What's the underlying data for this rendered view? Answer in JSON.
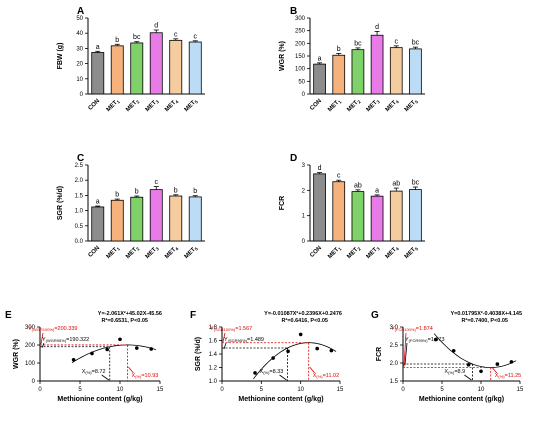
{
  "chart_data": [
    {
      "panel": "A",
      "type": "bar",
      "ylabel": "FBW (g)",
      "categories": [
        "CON",
        "MET1",
        "MET2",
        "MET3",
        "MET4",
        "MET5"
      ],
      "values": [
        27.3,
        31.7,
        33.6,
        40.3,
        35.3,
        34.2
      ],
      "errors": [
        0.8,
        1.0,
        0.8,
        1.8,
        1.0,
        0.8
      ],
      "letters": [
        "a",
        "b",
        "bc",
        "d",
        "c",
        "c"
      ],
      "yticks": [
        0,
        10,
        20,
        30,
        40,
        50
      ],
      "ylim": [
        0,
        50
      ]
    },
    {
      "panel": "B",
      "type": "bar",
      "ylabel": "WGR (%)",
      "categories": [
        "CON",
        "MET1",
        "MET2",
        "MET3",
        "MET4",
        "MET5"
      ],
      "values": [
        118,
        153,
        175,
        232,
        183,
        178
      ],
      "errors": [
        5,
        7,
        7,
        15,
        7,
        7
      ],
      "letters": [
        "a",
        "b",
        "bc",
        "d",
        "c",
        "bc"
      ],
      "yticks": [
        0,
        50,
        100,
        150,
        200,
        250,
        300
      ],
      "ylim": [
        0,
        300
      ]
    },
    {
      "panel": "C",
      "type": "bar",
      "ylabel": "SGR (%/d)",
      "categories": [
        "CON",
        "MET1",
        "MET2",
        "MET3",
        "MET4",
        "MET5"
      ],
      "values": [
        1.12,
        1.34,
        1.44,
        1.69,
        1.48,
        1.45
      ],
      "errors": [
        0.03,
        0.04,
        0.04,
        0.1,
        0.04,
        0.04
      ],
      "letters": [
        "a",
        "b",
        "b",
        "c",
        "b",
        "b"
      ],
      "yticks": [
        0.0,
        0.5,
        1.0,
        1.5,
        2.0,
        2.5
      ],
      "ylim": [
        0,
        2.5
      ]
    },
    {
      "panel": "D",
      "type": "bar",
      "ylabel": "FCR",
      "categories": [
        "CON",
        "MET1",
        "MET2",
        "MET3",
        "MET4",
        "MET5"
      ],
      "values": [
        2.65,
        2.34,
        1.95,
        1.77,
        1.97,
        2.03
      ],
      "errors": [
        0.05,
        0.06,
        0.07,
        0.05,
        0.12,
        0.1
      ],
      "letters": [
        "d",
        "c",
        "ab",
        "a",
        "ab",
        "bc"
      ],
      "yticks": [
        0,
        1,
        2,
        3
      ],
      "ylim": [
        0,
        3
      ]
    },
    {
      "panel": "E",
      "type": "scatter",
      "ylabel": "WGR (%)",
      "xlabel": "Methionine content (g/kg)",
      "x": [
        4.2,
        6.5,
        8.4,
        10.0,
        12.1,
        13.9
      ],
      "y": [
        118,
        153,
        175,
        232,
        183,
        178
      ],
      "xlim": [
        0,
        15
      ],
      "ylim": [
        0,
        300
      ],
      "xticks": [
        0,
        5,
        10,
        15
      ],
      "yticks": [
        0,
        100,
        200,
        300
      ],
      "equation": "Y=-2.061X²+45.02X-45.56",
      "r2": "R²=0.6531, P<0.05",
      "breakpoint_100_label": "Y(WGR100%)=200.339",
      "breakpoint_95_label": "Y(WGR95%)=190.322",
      "x95_label": "X(%)=8.72",
      "x100_label": "X(%)=10.93",
      "y100": 200.339,
      "y95": 190.322,
      "x95": 8.72,
      "x100": 10.93
    },
    {
      "panel": "F",
      "type": "scatter",
      "ylabel": "SGR (%/d)",
      "xlabel": "Methionine content (g/kg)",
      "x": [
        4.2,
        6.5,
        8.4,
        10.0,
        12.1,
        13.9
      ],
      "y": [
        1.12,
        1.34,
        1.44,
        1.69,
        1.48,
        1.45
      ],
      "xlim": [
        0,
        15
      ],
      "ylim": [
        1.0,
        1.8
      ],
      "xticks": [
        0,
        5,
        10,
        15
      ],
      "yticks": [
        1.0,
        1.2,
        1.4,
        1.6,
        1.8
      ],
      "equation": "Y=-0.01087X²+0.2396X+0.2476",
      "r2": "R²=0.6416, P<0.05",
      "breakpoint_100_label": "Y(SGR100%)=1.567",
      "breakpoint_95_label": "Y(SGR95%)=1.489",
      "x95_label": "X(%)=8.33",
      "x100_label": "X(%)=11.02",
      "y100": 1.567,
      "y95": 1.489,
      "x95": 8.33,
      "x100": 11.02
    },
    {
      "panel": "G",
      "type": "scatter",
      "ylabel": "FCR",
      "xlabel": "Methionine content (g/kg)",
      "x": [
        4.2,
        6.5,
        8.4,
        10.0,
        12.1,
        13.9
      ],
      "y": [
        2.65,
        2.34,
        1.95,
        1.77,
        1.97,
        2.03
      ],
      "xlim": [
        0,
        15
      ],
      "ylim": [
        1.5,
        3.0
      ],
      "xticks": [
        0,
        5,
        10,
        15
      ],
      "yticks": [
        1.5,
        2.0,
        2.5,
        3.0
      ],
      "equation": "Y=0.01795X²-0.4038X+4.145",
      "r2": "R²=0.7400, P<0.05",
      "breakpoint_100_label": "Y(FCR100%)=1.874",
      "breakpoint_95_label": "Y(FCR95%)=1.973",
      "x95_label": "X(%)=8.9",
      "x100_label": "X(%)=11.25",
      "y100": 1.874,
      "y95": 1.973,
      "x95": 8.9,
      "x100": 11.25
    }
  ],
  "colors": {
    "bars": [
      "#8c8c8c",
      "#f6b27c",
      "#7fd16a",
      "#e77ce8",
      "#f4cc9e",
      "#bcdcf5"
    ],
    "red": "#e00000"
  }
}
